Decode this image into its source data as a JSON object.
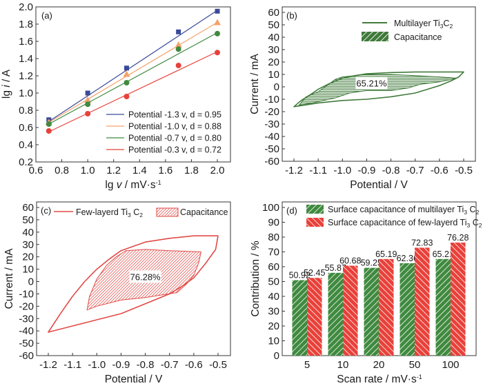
{
  "chart_data": [
    {
      "panel": "(a)",
      "type": "scatter",
      "xlabel": "lg v / mV·s⁻¹",
      "xlabel_parts": [
        "lg ",
        "v",
        " / mV·s",
        "-1"
      ],
      "ylabel": "lg i / A",
      "ylabel_parts": [
        "lg ",
        "i",
        " / A"
      ],
      "xlim": [
        0.6,
        2.1
      ],
      "ylim": [
        0.2,
        2.0
      ],
      "xticks": [
        0.6,
        0.8,
        1.0,
        1.2,
        1.4,
        1.6,
        1.8,
        2.0
      ],
      "xtick_labels": [
        "0.6",
        "0.8",
        "1.0",
        "1.2",
        "1.4",
        "1.6",
        "1.8",
        "2.0"
      ],
      "yticks": [
        0.2,
        0.4,
        0.6,
        0.8,
        1.0,
        1.2,
        1.4,
        1.6,
        1.8,
        2.0
      ],
      "ytick_labels": [
        "0.2",
        "0.4",
        "0.6",
        "0.8",
        "1.0",
        "1.2",
        "1.4",
        "1.6",
        "1.8",
        "2.0"
      ],
      "legend_position": "bottom-right",
      "x": [
        0.7,
        1.0,
        1.3,
        1.7,
        2.0
      ],
      "series": [
        {
          "name": "Potential -1.3 v, d = 0.95",
          "color": "#3a4a9a",
          "marker": "square",
          "values": [
            0.69,
            1.0,
            1.29,
            1.71,
            1.95
          ],
          "fit": [
            0.67,
            1.96
          ]
        },
        {
          "name": "Potential -1.0 v, d = 0.88",
          "color": "#f5a26a",
          "marker": "triangle",
          "values": [
            0.66,
            0.92,
            1.22,
            1.56,
            1.82
          ],
          "fit": [
            0.66,
            1.82
          ]
        },
        {
          "name": "Potential -0.7 v, d = 0.80",
          "color": "#3f8a3f",
          "marker": "circle",
          "values": [
            0.64,
            0.87,
            1.12,
            1.51,
            1.69
          ],
          "fit": [
            0.64,
            1.7
          ]
        },
        {
          "name": "Potential -0.3 v, d = 0.72",
          "color": "#e8413a",
          "marker": "circle",
          "values": [
            0.56,
            0.76,
            0.96,
            1.32,
            1.47
          ],
          "fit": [
            0.55,
            1.48
          ]
        }
      ]
    },
    {
      "panel": "(b)",
      "type": "line",
      "xlabel": "Potential / V",
      "ylabel": "Current / mA",
      "xlim": [
        -1.25,
        -0.45
      ],
      "ylim": [
        -60,
        65
      ],
      "xticks": [
        -1.2,
        -1.1,
        -1.0,
        -0.9,
        -0.8,
        -0.7,
        -0.6,
        -0.5
      ],
      "xtick_labels": [
        "-1.2",
        "-1.1",
        "-1.0",
        "-0.9",
        "-0.8",
        "-0.7",
        "-0.6",
        "-0.5"
      ],
      "yticks": [
        -60,
        -50,
        -40,
        -30,
        -20,
        -10,
        0,
        10,
        20,
        30,
        40,
        50,
        60
      ],
      "ytick_labels": [
        "-60",
        "-50",
        "-40",
        "-30",
        "-20",
        "-10",
        "0",
        "10",
        "20",
        "30",
        "40",
        "50",
        "60"
      ],
      "color": "#3f7a3a",
      "legend_position": "top-right",
      "legend": [
        {
          "label": "Multilayer Ti",
          "sub1": "3",
          "mid": "C",
          "sub2": "2",
          "kind": "line"
        },
        {
          "label": "Capacitance",
          "kind": "hatch"
        }
      ],
      "annotation": "65.21%",
      "annotation_at": [
        -0.88,
        3
      ],
      "cv_curve": [
        [
          -1.2,
          -16
        ],
        [
          -1.17,
          -11
        ],
        [
          -1.13,
          -6
        ],
        [
          -1.1,
          -2
        ],
        [
          -1.05,
          3
        ],
        [
          -1.0,
          7
        ],
        [
          -0.95,
          9
        ],
        [
          -0.9,
          10.5
        ],
        [
          -0.8,
          11.5
        ],
        [
          -0.7,
          12
        ],
        [
          -0.6,
          12
        ],
        [
          -0.5,
          12
        ],
        [
          -0.52,
          8
        ],
        [
          -0.55,
          5
        ],
        [
          -0.6,
          1
        ],
        [
          -0.65,
          -2
        ],
        [
          -0.7,
          -5
        ],
        [
          -0.8,
          -8
        ],
        [
          -0.9,
          -10
        ],
        [
          -1.0,
          -11
        ],
        [
          -1.1,
          -13
        ],
        [
          -1.2,
          -16
        ]
      ],
      "capacitive_region": [
        [
          -1.18,
          -15
        ],
        [
          -1.15,
          -8
        ],
        [
          -1.1,
          -4
        ],
        [
          -1.05,
          3
        ],
        [
          -1.03,
          6
        ],
        [
          -1.0,
          8
        ],
        [
          -0.9,
          10
        ],
        [
          -0.8,
          10
        ],
        [
          -0.7,
          9
        ],
        [
          -0.6,
          8
        ],
        [
          -0.53,
          7
        ],
        [
          -0.55,
          6
        ],
        [
          -0.6,
          4
        ],
        [
          -0.68,
          2
        ],
        [
          -0.73,
          -1
        ],
        [
          -0.8,
          -3
        ],
        [
          -0.9,
          -3
        ],
        [
          -0.97,
          -5
        ],
        [
          -1.03,
          -9
        ],
        [
          -1.1,
          -12
        ],
        [
          -1.18,
          -15
        ]
      ]
    },
    {
      "panel": "(c)",
      "type": "line",
      "xlabel": "Potential / V",
      "ylabel": "Current / mA",
      "xlim": [
        -1.25,
        -0.45
      ],
      "ylim": [
        -60,
        65
      ],
      "xticks": [
        -1.2,
        -1.1,
        -1.0,
        -0.9,
        -0.8,
        -0.7,
        -0.6,
        -0.5
      ],
      "xtick_labels": [
        "-1.2",
        "-1.1",
        "-1.0",
        "-0.9",
        "-0.8",
        "-0.7",
        "-0.6",
        "-0.5"
      ],
      "yticks": [
        -60,
        -50,
        -40,
        -30,
        -20,
        -10,
        0,
        10,
        20,
        30,
        40,
        50,
        60
      ],
      "ytick_labels": [
        "-60",
        "-50",
        "-40",
        "-30",
        "-20",
        "-10",
        "0",
        "10",
        "20",
        "30",
        "40",
        "50",
        "60"
      ],
      "color": "#e04a45",
      "legend_position": "top",
      "legend": [
        {
          "label": "Few-layerd Ti",
          "sub1": "3",
          "mid": " C",
          "sub2": "2",
          "kind": "line"
        },
        {
          "label": "Capacitance",
          "kind": "hatch"
        }
      ],
      "annotation": "76.28%",
      "annotation_at": [
        -0.8,
        4
      ],
      "cv_curve": [
        [
          -1.2,
          -41
        ],
        [
          -1.15,
          -26
        ],
        [
          -1.1,
          -12
        ],
        [
          -1.05,
          0
        ],
        [
          -1.0,
          10
        ],
        [
          -0.95,
          18
        ],
        [
          -0.9,
          25
        ],
        [
          -0.8,
          32
        ],
        [
          -0.7,
          35
        ],
        [
          -0.6,
          37
        ],
        [
          -0.5,
          37
        ],
        [
          -0.51,
          26
        ],
        [
          -0.55,
          15
        ],
        [
          -0.6,
          3
        ],
        [
          -0.65,
          -4
        ],
        [
          -0.7,
          -10
        ],
        [
          -0.8,
          -18
        ],
        [
          -0.9,
          -26
        ],
        [
          -1.0,
          -31
        ],
        [
          -1.1,
          -36
        ],
        [
          -1.2,
          -41
        ]
      ],
      "capacitive_region": [
        [
          -1.04,
          -23
        ],
        [
          -1.03,
          -12
        ],
        [
          -1.0,
          2
        ],
        [
          -0.96,
          13
        ],
        [
          -0.92,
          20
        ],
        [
          -0.88,
          25
        ],
        [
          -0.8,
          26
        ],
        [
          -0.7,
          25
        ],
        [
          -0.57,
          24
        ],
        [
          -0.58,
          15
        ],
        [
          -0.6,
          5
        ],
        [
          -0.63,
          -2
        ],
        [
          -0.67,
          -9
        ],
        [
          -0.8,
          -13
        ],
        [
          -0.9,
          -15
        ],
        [
          -1.0,
          -20
        ],
        [
          -1.04,
          -23
        ]
      ]
    },
    {
      "panel": "(d)",
      "type": "bar",
      "xlabel": "Scan rate / mV·s⁻¹",
      "xlabel_parts": [
        "Scan rate / mV·s",
        "-1"
      ],
      "ylabel": "Contribution / %",
      "ylim": [
        0,
        105
      ],
      "yticks": [
        0,
        10,
        20,
        30,
        40,
        50,
        60,
        70,
        80,
        90,
        100
      ],
      "ytick_labels": [
        "0",
        "10",
        "20",
        "30",
        "40",
        "50",
        "60",
        "70",
        "80",
        "90",
        "100"
      ],
      "categories": [
        "5",
        "10",
        "20",
        "50",
        "100"
      ],
      "legend_position": "top-right",
      "series": [
        {
          "name": "Surface capacitance of multilayer Ti3C2",
          "label": "Surface capacitance of multilayer Ti",
          "sub1": "3",
          "mid": " C",
          "sub2": "2",
          "color": "#3f8a3f",
          "hatch": "forward",
          "values": [
            50.92,
            55.87,
            59.25,
            62.36,
            65.21
          ],
          "value_labels": [
            "50.92",
            "55.87",
            "59.25",
            "62.36",
            "65.21"
          ]
        },
        {
          "name": "Surface capacitance of few-layerd Ti3C2",
          "label": "Surface capacitance of few-layerd Ti",
          "sub1": "3",
          "mid": " C",
          "sub2": "2",
          "color": "#e8413a",
          "hatch": "backward",
          "values": [
            52.45,
            60.68,
            65.19,
            72.83,
            76.28
          ],
          "value_labels": [
            "52.45",
            "60.68",
            "65.19",
            "72.83",
            "76.28"
          ]
        }
      ]
    }
  ]
}
